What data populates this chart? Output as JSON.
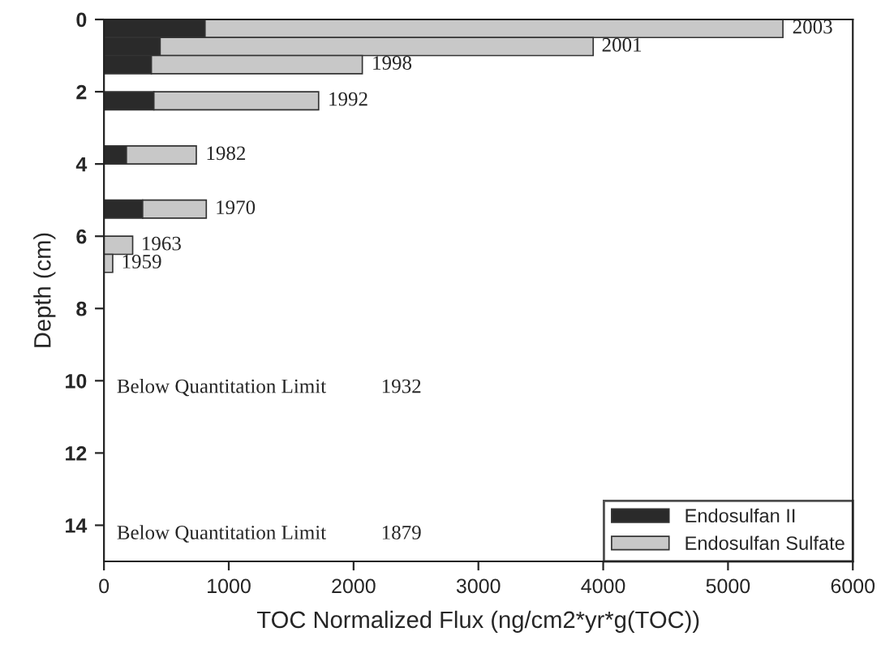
{
  "chart_data": {
    "type": "bar",
    "orientation": "horizontal",
    "stacked": true,
    "xlabel": "TOC Normalized Flux (ng/cm2*yr*g(TOC))",
    "ylabel": "Depth (cm)",
    "x": [
      0.25,
      0.75,
      1.25,
      2.25,
      3.75,
      5.25,
      6.25,
      6.75
    ],
    "series": [
      {
        "name": "Endosulfan II",
        "color": "#2a2a2a",
        "values": [
          810,
          450,
          380,
          400,
          180,
          310,
          0,
          0
        ]
      },
      {
        "name": "Endosulfan Sulfate",
        "color": "#c8c8c8",
        "values": [
          4630,
          3470,
          1690,
          1320,
          560,
          510,
          230,
          70
        ]
      }
    ],
    "xlim": [
      0,
      6000
    ],
    "xticks": [
      0,
      1000,
      2000,
      3000,
      4000,
      5000,
      6000
    ],
    "ylim": [
      15,
      0
    ],
    "yticks": [
      0,
      2,
      4,
      6,
      8,
      10,
      12,
      14
    ],
    "legend": "bottom right",
    "grid": false,
    "annotations": [
      {
        "text": "2003",
        "x": 5443,
        "y": 0.25
      },
      {
        "text": "2001",
        "x": 3915,
        "y": 0.75
      },
      {
        "text": "1998",
        "x": 2072,
        "y": 1.25
      },
      {
        "text": "1992",
        "x": 1721,
        "y": 2.25
      },
      {
        "text": "1982",
        "x": 742,
        "y": 3.75
      },
      {
        "text": "1970",
        "x": 818,
        "y": 5.25
      },
      {
        "text": "1963",
        "x": 225,
        "y": 6.25
      },
      {
        "text": "1959",
        "x": 67,
        "y": 6.75
      },
      "Below Quantitation Limit",
      "1932",
      "Below Quantitation Limit",
      "1879"
    ]
  }
}
